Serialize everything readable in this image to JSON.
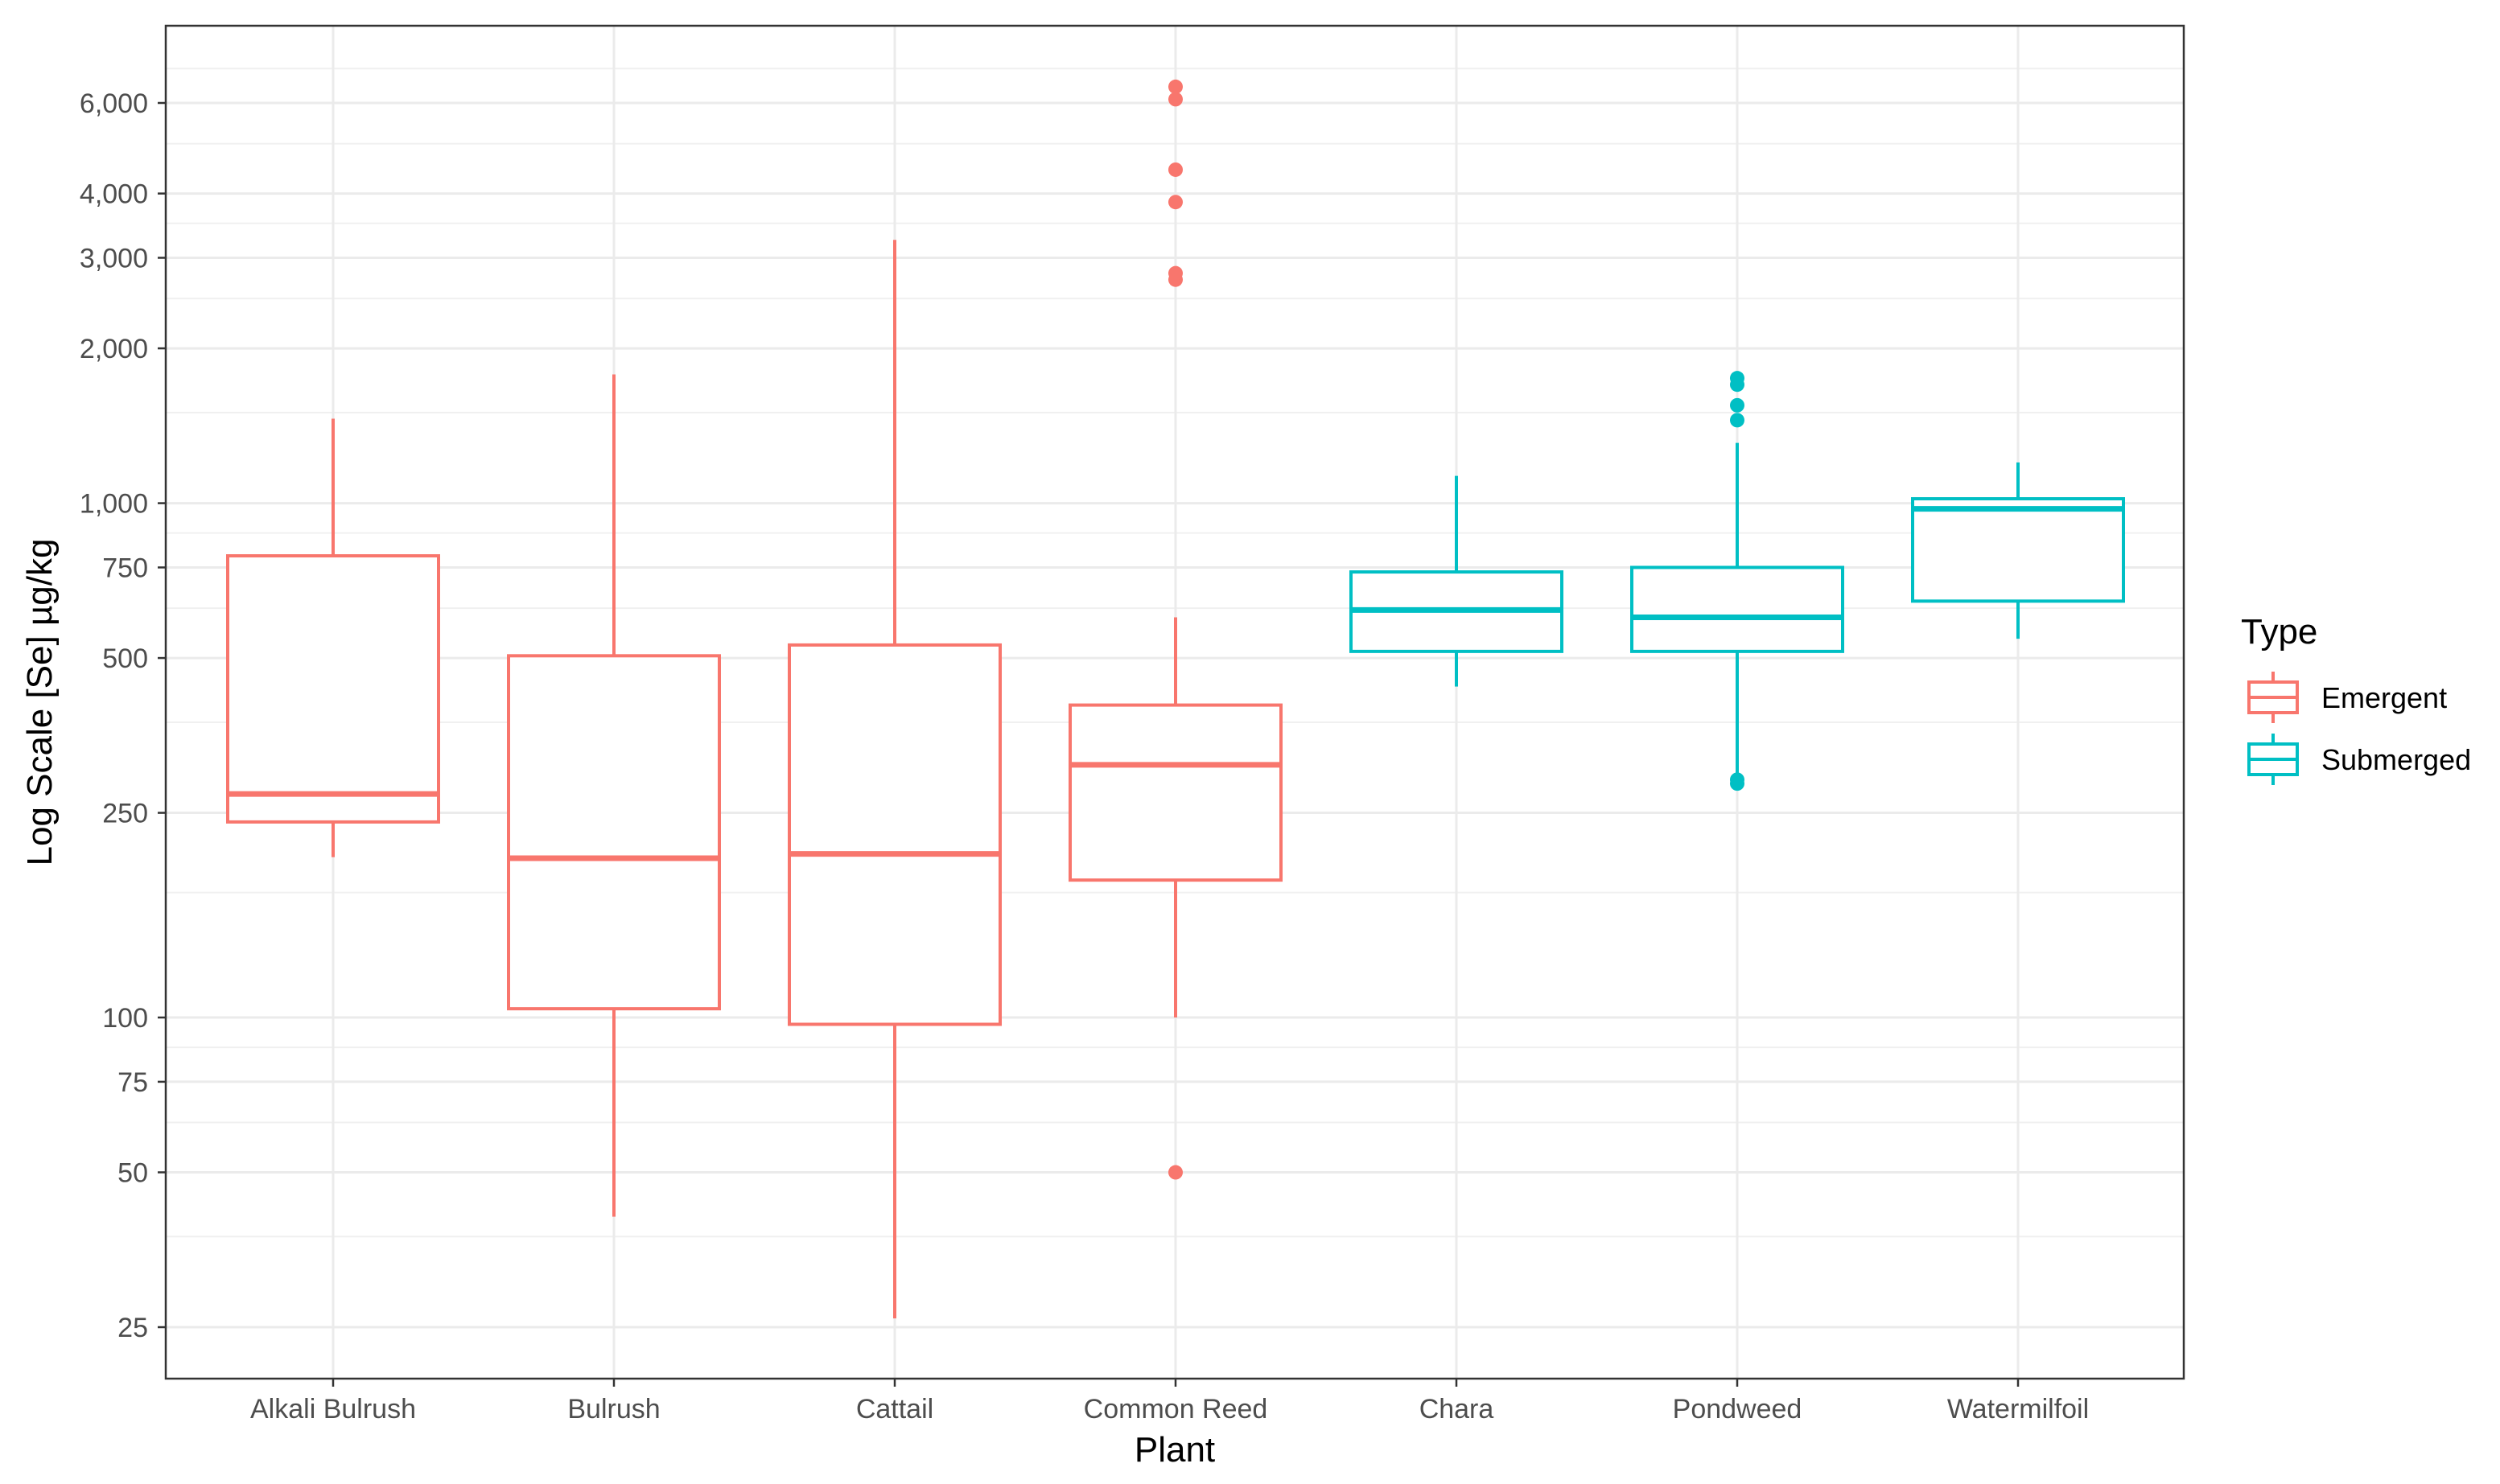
{
  "chart_data": {
    "type": "boxplot",
    "title": "",
    "xlabel": "Plant",
    "ylabel": "Log Scale [Se]  µg/kg",
    "yscale": "log10",
    "ylim": [
      20,
      8000
    ],
    "y_ticks": [
      25,
      50,
      75,
      100,
      250,
      500,
      750,
      1000,
      2000,
      3000,
      4000,
      6000
    ],
    "y_tick_labels": [
      "25",
      "50",
      "75",
      "100",
      "250",
      "500",
      "750",
      "1,000",
      "2,000",
      "3,000",
      "4,000",
      "6,000"
    ],
    "y_minor_gridlines": [
      37.5,
      62.5,
      87.5,
      175,
      375,
      625,
      875,
      1500,
      2500,
      3500,
      5000,
      7000
    ],
    "grid": true,
    "legend": {
      "title": "Type",
      "position": "right",
      "entries": [
        {
          "label": "Emergent",
          "color": "#F8766D"
        },
        {
          "label": "Submerged",
          "color": "#00BFC4"
        }
      ]
    },
    "categories": [
      "Alkali Bulrush",
      "Bulrush",
      "Cattail",
      "Common Reed",
      "Chara",
      "Pondweed",
      "Watermilfoil"
    ],
    "boxes": [
      {
        "plant": "Alkali Bulrush",
        "type": "Emergent",
        "whisker_low": 205,
        "q1": 240,
        "median": 272,
        "q3": 790,
        "whisker_high": 1460,
        "outliers": []
      },
      {
        "plant": "Bulrush",
        "type": "Emergent",
        "whisker_low": 41,
        "q1": 104,
        "median": 204,
        "q3": 505,
        "whisker_high": 1780,
        "outliers": []
      },
      {
        "plant": "Cattail",
        "type": "Emergent",
        "whisker_low": 26,
        "q1": 97,
        "median": 208,
        "q3": 530,
        "whisker_high": 3250,
        "outliers": []
      },
      {
        "plant": "Common Reed",
        "type": "Emergent",
        "whisker_low": 100,
        "q1": 185,
        "median": 310,
        "q3": 405,
        "whisker_high": 600,
        "outliers": [
          50,
          2720,
          2800,
          3850,
          4450,
          6100,
          6450
        ]
      },
      {
        "plant": "Chara",
        "type": "Submerged",
        "whisker_low": 440,
        "q1": 515,
        "median": 620,
        "q3": 735,
        "whisker_high": 1130,
        "outliers": []
      },
      {
        "plant": "Pondweed",
        "type": "Submerged",
        "whisker_low": 290,
        "q1": 515,
        "median": 600,
        "q3": 750,
        "whisker_high": 1310,
        "outliers": [
          285,
          290,
          1450,
          1550,
          1700,
          1750
        ]
      },
      {
        "plant": "Watermilfoil",
        "type": "Submerged",
        "whisker_low": 545,
        "q1": 645,
        "median": 975,
        "q3": 1020,
        "whisker_high": 1200,
        "outliers": []
      }
    ]
  }
}
